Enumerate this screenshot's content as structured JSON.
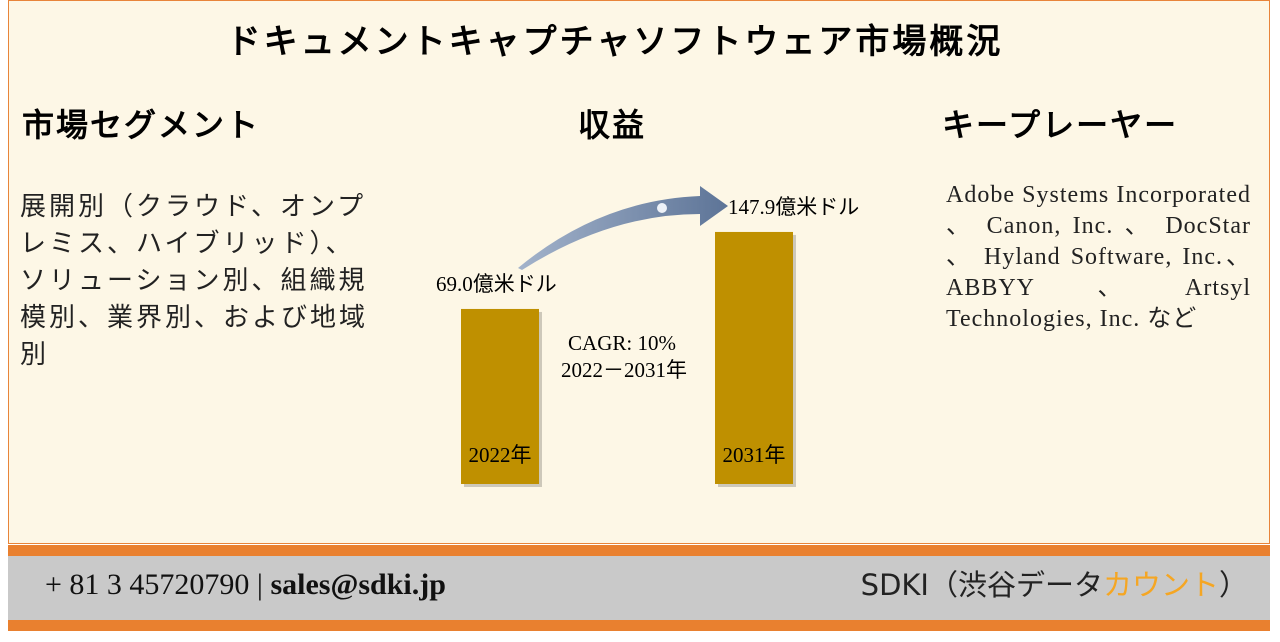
{
  "title": "ドキュメントキャプチャソフトウェア市場概況",
  "segments": {
    "heading": "市場セグメント",
    "text": "展開別（クラウド、オンプレミス、ハイブリッド）、ソリューション別、組織規模別、業界別、および地域別"
  },
  "revenue": {
    "heading": "収益",
    "bars": [
      {
        "year": "2022年",
        "value": 69.0,
        "value_label": "69.0億米ドル"
      },
      {
        "year": "2031年",
        "value": 147.9,
        "value_label": "147.9億米ドル"
      }
    ],
    "cagr": "CAGR: 10%",
    "period": "2022－2031年"
  },
  "players": {
    "heading": "キープレーヤー",
    "text": "Adobe Systems Incorporated 、 Canon, Inc. 、 DocStar 、 Hyland Software, Inc.、ABBYY、Artsyl Technologies, Inc. など"
  },
  "footer": {
    "phone": "+ 81 3 45720790",
    "separator": "|",
    "email": "sales@sdki.jp",
    "brand": [
      "SDKI（渋谷データ",
      "カウント",
      "）"
    ]
  }
}
